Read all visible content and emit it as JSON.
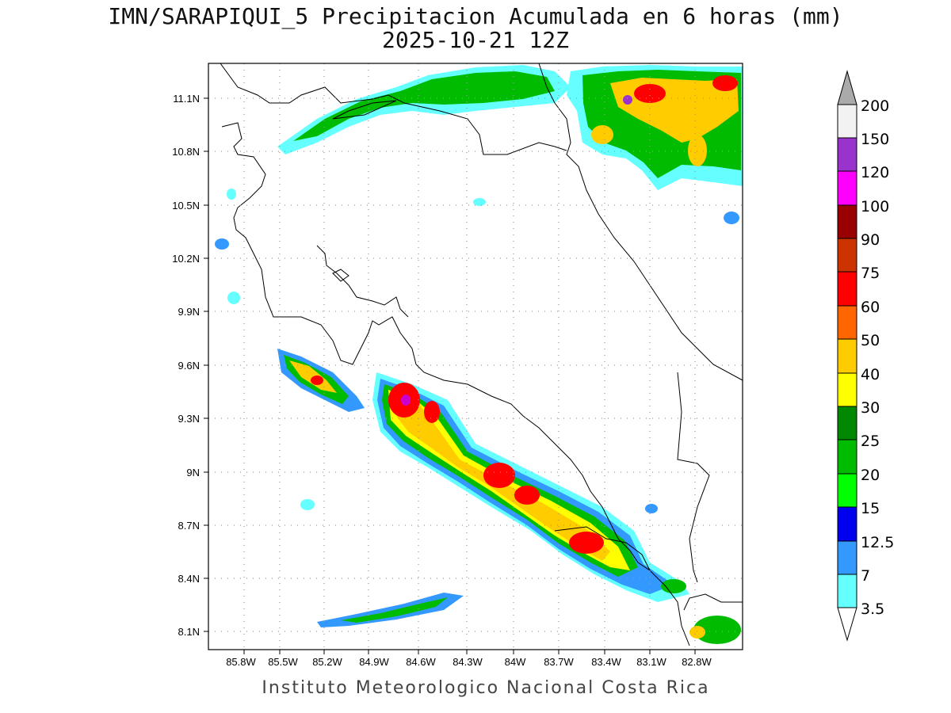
{
  "title_line1": "IMN/SARAPIQUI_5 Precipitacion Acumulada en 6 horas (mm)",
  "title_line2": "2025-10-21 12Z",
  "footer": "Instituto Meteorologico Nacional Costa Rica",
  "map": {
    "lon_range": [
      -86.0,
      -82.6
    ],
    "lat_range": [
      8.0,
      11.3
    ],
    "lon_ticks": [
      "85.8W",
      "85.5W",
      "85.2W",
      "84.9W",
      "84.6W",
      "84.3W",
      "84W",
      "83.7W",
      "83.4W",
      "83.1W",
      "82.8W"
    ],
    "lat_ticks": [
      "8.1N",
      "8.4N",
      "8.7N",
      "9N",
      "9.3N",
      "9.6N",
      "9.9N",
      "10.2N",
      "10.5N",
      "10.8N",
      "11.1N"
    ],
    "grid": "dotted"
  },
  "colorbar": {
    "levels": [
      "3.5",
      "7",
      "12.5",
      "15",
      "20",
      "25",
      "30",
      "40",
      "50",
      "60",
      "75",
      "90",
      "100",
      "120",
      "150",
      "200"
    ],
    "colors": [
      "#66ffff",
      "#3399ff",
      "#0000ee",
      "#00ff00",
      "#00bb00",
      "#008800",
      "#ffff00",
      "#ffcc00",
      "#ff6600",
      "#ff0000",
      "#cc3300",
      "#990000",
      "#ff00ff",
      "#9933cc",
      "#f2f2f2"
    ],
    "extend_top_color": "#aaaaaa",
    "extend_bottom_color": "#ffffff"
  }
}
